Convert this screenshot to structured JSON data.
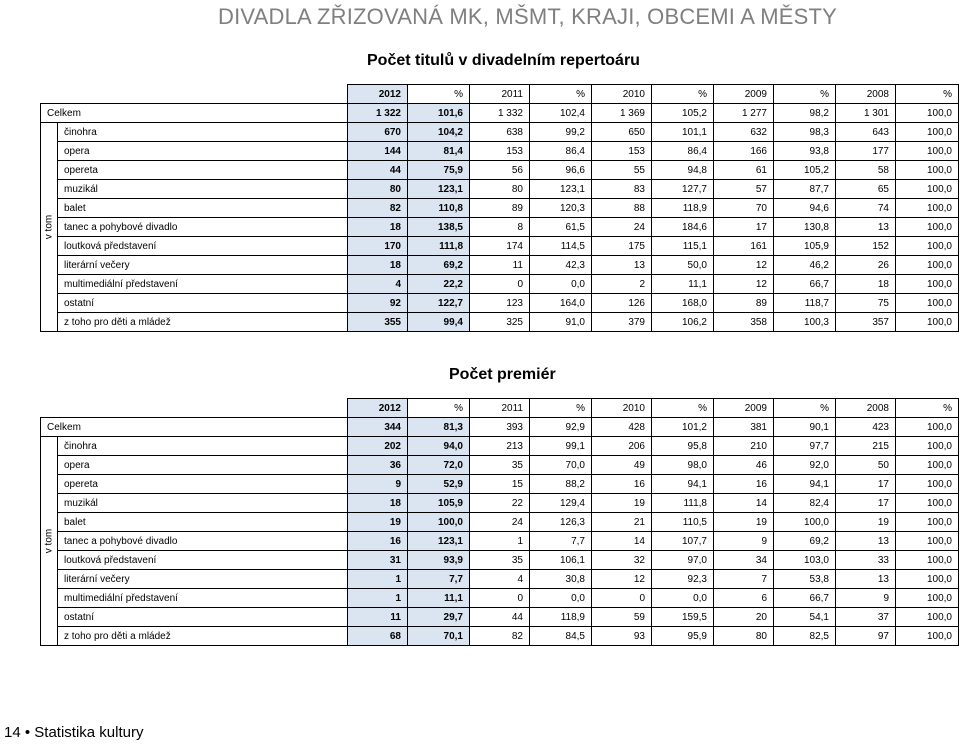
{
  "header": {
    "title": "DIVADLA ZŘIZOVANÁ MK, MŠMT, KRAJI, OBCEMI A MĚSTY"
  },
  "columns": [
    "2012",
    "%",
    "2011",
    "%",
    "2010",
    "%",
    "2009",
    "%",
    "2008",
    "%"
  ],
  "group_label": "v tom",
  "table1": {
    "title": "Počet titulů v divadelním repertoáru",
    "total": {
      "label": "Celkem",
      "values": [
        "1 322",
        "101,6",
        "1 332",
        "102,4",
        "1 369",
        "105,2",
        "1 277",
        "98,2",
        "1 301",
        "100,0"
      ]
    },
    "rows": [
      {
        "label": "činohra",
        "values": [
          "670",
          "104,2",
          "638",
          "99,2",
          "650",
          "101,1",
          "632",
          "98,3",
          "643",
          "100,0"
        ]
      },
      {
        "label": "opera",
        "values": [
          "144",
          "81,4",
          "153",
          "86,4",
          "153",
          "86,4",
          "166",
          "93,8",
          "177",
          "100,0"
        ]
      },
      {
        "label": "opereta",
        "values": [
          "44",
          "75,9",
          "56",
          "96,6",
          "55",
          "94,8",
          "61",
          "105,2",
          "58",
          "100,0"
        ]
      },
      {
        "label": "muzikál",
        "values": [
          "80",
          "123,1",
          "80",
          "123,1",
          "83",
          "127,7",
          "57",
          "87,7",
          "65",
          "100,0"
        ]
      },
      {
        "label": "balet",
        "values": [
          "82",
          "110,8",
          "89",
          "120,3",
          "88",
          "118,9",
          "70",
          "94,6",
          "74",
          "100,0"
        ]
      },
      {
        "label": "tanec a pohybové divadlo",
        "values": [
          "18",
          "138,5",
          "8",
          "61,5",
          "24",
          "184,6",
          "17",
          "130,8",
          "13",
          "100,0"
        ]
      },
      {
        "label": "loutková představení",
        "values": [
          "170",
          "111,8",
          "174",
          "114,5",
          "175",
          "115,1",
          "161",
          "105,9",
          "152",
          "100,0"
        ]
      },
      {
        "label": "literární večery",
        "values": [
          "18",
          "69,2",
          "11",
          "42,3",
          "13",
          "50,0",
          "12",
          "46,2",
          "26",
          "100,0"
        ]
      },
      {
        "label": "multimediální představení",
        "values": [
          "4",
          "22,2",
          "0",
          "0,0",
          "2",
          "11,1",
          "12",
          "66,7",
          "18",
          "100,0"
        ]
      },
      {
        "label": "ostatní",
        "values": [
          "92",
          "122,7",
          "123",
          "164,0",
          "126",
          "168,0",
          "89",
          "118,7",
          "75",
          "100,0"
        ]
      }
    ],
    "sub": {
      "label": "z toho pro děti a mládež",
      "values": [
        "355",
        "99,4",
        "325",
        "91,0",
        "379",
        "106,2",
        "358",
        "100,3",
        "357",
        "100,0"
      ]
    }
  },
  "table2": {
    "title": "Počet premiér",
    "total": {
      "label": "Celkem",
      "values": [
        "344",
        "81,3",
        "393",
        "92,9",
        "428",
        "101,2",
        "381",
        "90,1",
        "423",
        "100,0"
      ]
    },
    "rows": [
      {
        "label": "činohra",
        "values": [
          "202",
          "94,0",
          "213",
          "99,1",
          "206",
          "95,8",
          "210",
          "97,7",
          "215",
          "100,0"
        ]
      },
      {
        "label": "opera",
        "values": [
          "36",
          "72,0",
          "35",
          "70,0",
          "49",
          "98,0",
          "46",
          "92,0",
          "50",
          "100,0"
        ]
      },
      {
        "label": "opereta",
        "values": [
          "9",
          "52,9",
          "15",
          "88,2",
          "16",
          "94,1",
          "16",
          "94,1",
          "17",
          "100,0"
        ]
      },
      {
        "label": "muzikál",
        "values": [
          "18",
          "105,9",
          "22",
          "129,4",
          "19",
          "111,8",
          "14",
          "82,4",
          "17",
          "100,0"
        ]
      },
      {
        "label": "balet",
        "values": [
          "19",
          "100,0",
          "24",
          "126,3",
          "21",
          "110,5",
          "19",
          "100,0",
          "19",
          "100,0"
        ]
      },
      {
        "label": "tanec a pohybové divadlo",
        "values": [
          "16",
          "123,1",
          "1",
          "7,7",
          "14",
          "107,7",
          "9",
          "69,2",
          "13",
          "100,0"
        ]
      },
      {
        "label": "loutková představení",
        "values": [
          "31",
          "93,9",
          "35",
          "106,1",
          "32",
          "97,0",
          "34",
          "103,0",
          "33",
          "100,0"
        ]
      },
      {
        "label": "literární večery",
        "values": [
          "1",
          "7,7",
          "4",
          "30,8",
          "12",
          "92,3",
          "7",
          "53,8",
          "13",
          "100,0"
        ]
      },
      {
        "label": "multimediální představení",
        "values": [
          "1",
          "11,1",
          "0",
          "0,0",
          "0",
          "0,0",
          "6",
          "66,7",
          "9",
          "100,0"
        ]
      },
      {
        "label": "ostatní",
        "values": [
          "11",
          "29,7",
          "44",
          "118,9",
          "59",
          "159,5",
          "20",
          "54,1",
          "37",
          "100,0"
        ]
      }
    ],
    "sub": {
      "label": "z toho pro děti a mládež",
      "values": [
        "68",
        "70,1",
        "82",
        "84,5",
        "93",
        "95,9",
        "80",
        "82,5",
        "97",
        "100,0"
      ]
    }
  },
  "footer": {
    "page": "14 • Statistika kultury"
  }
}
